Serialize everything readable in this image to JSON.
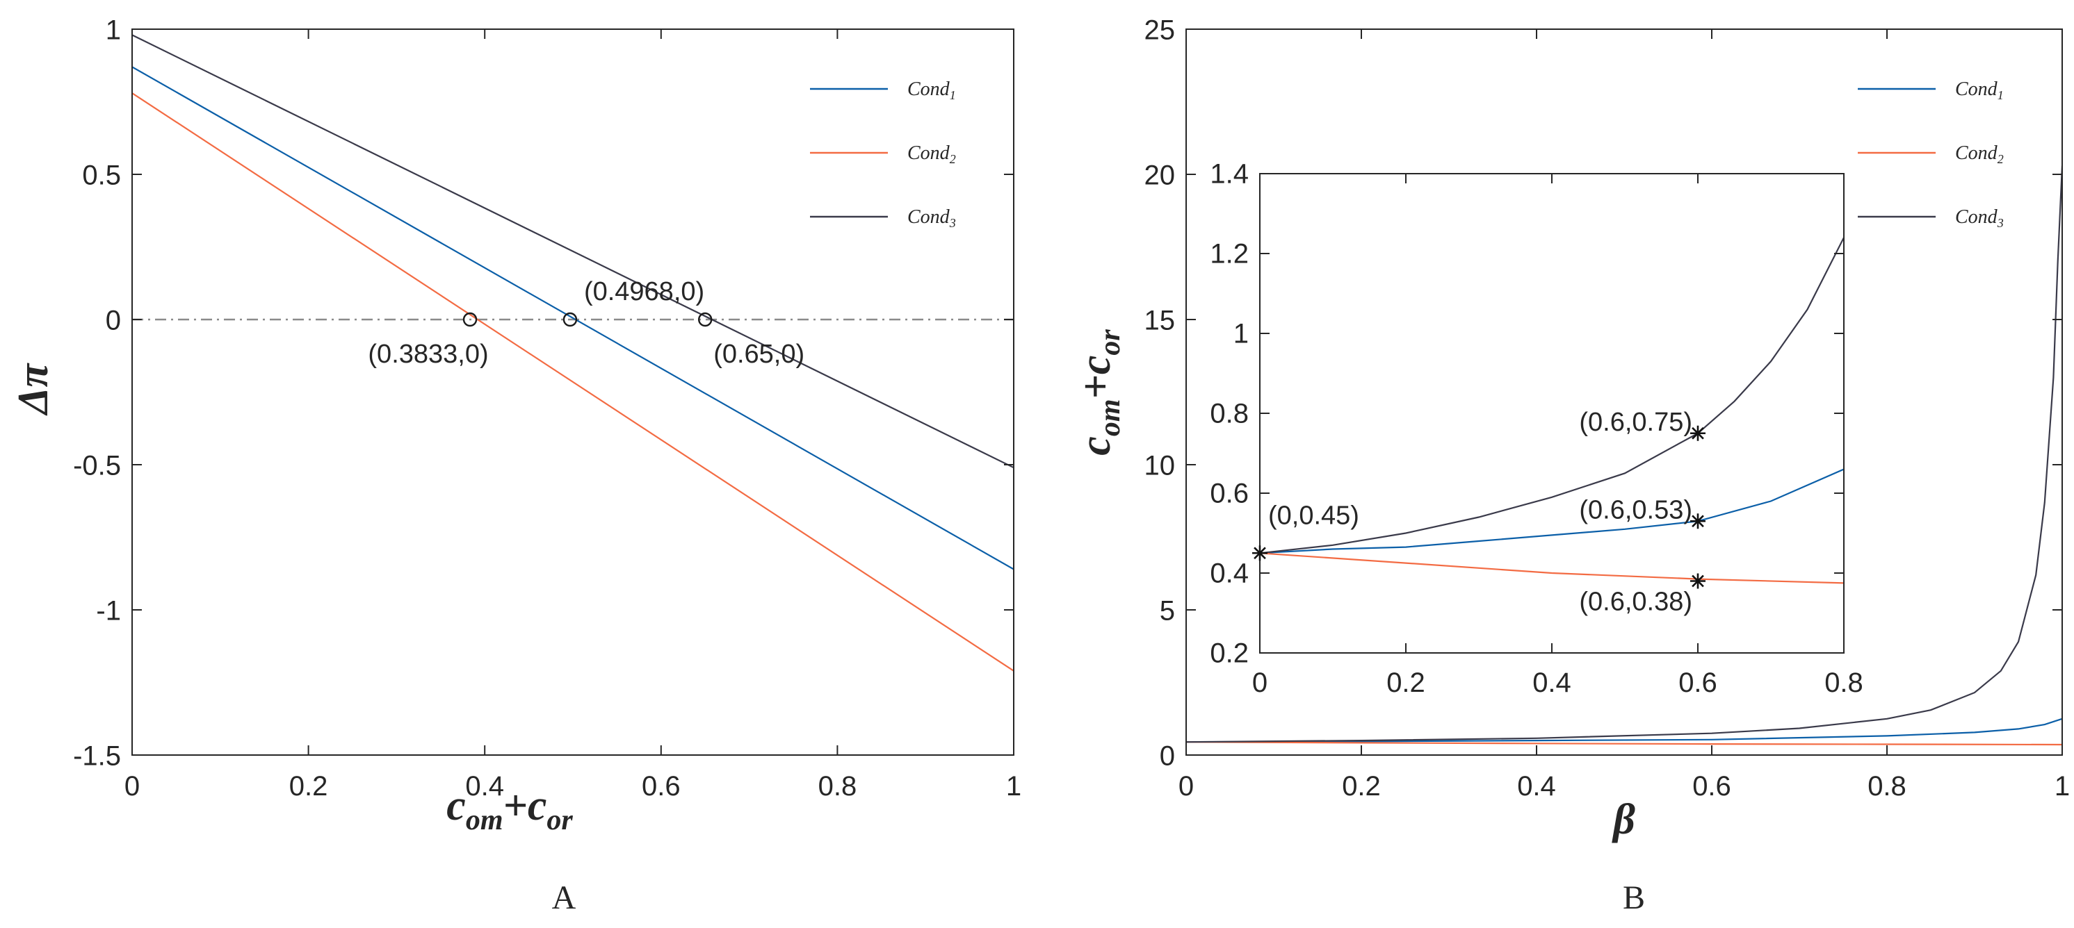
{
  "colors": {
    "cond1": "#0b5fa8",
    "cond2": "#f36b43",
    "cond3": "#3a3a4a",
    "axis": "#262626",
    "zero_line": "#8a8a8a"
  },
  "chart_data": [
    {
      "id": "A",
      "type": "line",
      "panel_label": "A",
      "xlabel": {
        "main": "c",
        "sub1": "om",
        "plus": "+c",
        "sub2": "or"
      },
      "ylabel": "Δπ",
      "xlim": [
        0,
        1
      ],
      "ylim": [
        -1.5,
        1
      ],
      "xticks": [
        0,
        0.2,
        0.4,
        0.6,
        0.8,
        1
      ],
      "xtick_labels": [
        "0",
        "0.2",
        "0.4",
        "0.6",
        "0.8",
        "1"
      ],
      "yticks": [
        -1.5,
        -1,
        -0.5,
        0,
        0.5,
        1
      ],
      "ytick_labels": [
        "-1.5",
        "-1",
        "-0.5",
        "0",
        "0.5",
        "1"
      ],
      "legend_position": "top-right",
      "series": [
        {
          "name": "Cond1",
          "label_base": "Cond",
          "label_sub": "1",
          "color_key": "cond1",
          "x": [
            0,
            1
          ],
          "y": [
            0.87,
            -0.86
          ]
        },
        {
          "name": "Cond2",
          "label_base": "Cond",
          "label_sub": "2",
          "color_key": "cond2",
          "x": [
            0,
            1
          ],
          "y": [
            0.78,
            -1.21
          ]
        },
        {
          "name": "Cond3",
          "label_base": "Cond",
          "label_sub": "3",
          "color_key": "cond3",
          "x": [
            0,
            1
          ],
          "y": [
            0.98,
            -0.51
          ]
        }
      ],
      "reference_line": {
        "y": 0,
        "style": "dash-dot"
      },
      "markers": [
        {
          "x": 0.3833,
          "y": 0,
          "label": "(0.3833,0)",
          "label_pos": "below-left"
        },
        {
          "x": 0.4968,
          "y": 0,
          "label": "(0.4968,0)",
          "label_pos": "above-right"
        },
        {
          "x": 0.65,
          "y": 0,
          "label": "(0.65,0)",
          "label_pos": "below-right"
        }
      ]
    },
    {
      "id": "B",
      "type": "line",
      "panel_label": "B",
      "xlabel": "β",
      "ylabel": {
        "main": "c",
        "sub1": "om",
        "plus": "+c",
        "sub2": "or"
      },
      "xlim": [
        0,
        1
      ],
      "ylim": [
        0,
        25
      ],
      "xticks": [
        0,
        0.2,
        0.4,
        0.6,
        0.8,
        1
      ],
      "xtick_labels": [
        "0",
        "0.2",
        "0.4",
        "0.6",
        "0.8",
        "1"
      ],
      "yticks": [
        0,
        5,
        10,
        15,
        20,
        25
      ],
      "ytick_labels": [
        "0",
        "5",
        "10",
        "15",
        "20",
        "25"
      ],
      "legend_position": "top-right",
      "series": [
        {
          "name": "Cond1",
          "label_base": "Cond",
          "label_sub": "1",
          "color_key": "cond1",
          "x": [
            0,
            0.2,
            0.4,
            0.6,
            0.8,
            0.9,
            0.95,
            0.98,
            1.0
          ],
          "y": [
            0.45,
            0.47,
            0.5,
            0.53,
            0.66,
            0.78,
            0.9,
            1.05,
            1.25
          ]
        },
        {
          "name": "Cond2",
          "label_base": "Cond",
          "label_sub": "2",
          "color_key": "cond2",
          "x": [
            0,
            0.2,
            0.4,
            0.6,
            0.8,
            1.0
          ],
          "y": [
            0.45,
            0.42,
            0.4,
            0.38,
            0.37,
            0.36
          ]
        },
        {
          "name": "Cond3",
          "label_base": "Cond",
          "label_sub": "3",
          "color_key": "cond3",
          "x": [
            0,
            0.2,
            0.4,
            0.6,
            0.7,
            0.8,
            0.85,
            0.9,
            0.93,
            0.95,
            0.97,
            0.98,
            0.99,
            0.995,
            1.0
          ],
          "y": [
            0.45,
            0.5,
            0.58,
            0.75,
            0.92,
            1.25,
            1.55,
            2.15,
            2.9,
            3.9,
            6.2,
            8.7,
            13.0,
            17.0,
            20.3
          ]
        }
      ],
      "inset": {
        "xlim": [
          0,
          0.8
        ],
        "ylim": [
          0.2,
          1.4
        ],
        "xticks": [
          0,
          0.2,
          0.4,
          0.6,
          0.8
        ],
        "xtick_labels": [
          "0",
          "0.2",
          "0.4",
          "0.6",
          "0.8"
        ],
        "yticks": [
          0.2,
          0.4,
          0.6,
          0.8,
          1,
          1.2,
          1.4
        ],
        "ytick_labels": [
          "0.2",
          "0.4",
          "0.6",
          "0.8",
          "1",
          "1.2",
          "1.4"
        ],
        "series": [
          {
            "name": "Cond1",
            "color_key": "cond1",
            "x": [
              0,
              0.1,
              0.2,
              0.3,
              0.4,
              0.5,
              0.6,
              0.7,
              0.8
            ],
            "y": [
              0.45,
              0.46,
              0.465,
              0.48,
              0.495,
              0.51,
              0.53,
              0.58,
              0.66
            ]
          },
          {
            "name": "Cond2",
            "color_key": "cond2",
            "x": [
              0,
              0.2,
              0.4,
              0.6,
              0.8
            ],
            "y": [
              0.45,
              0.425,
              0.4,
              0.385,
              0.375
            ]
          },
          {
            "name": "Cond3",
            "color_key": "cond3",
            "x": [
              0,
              0.1,
              0.2,
              0.3,
              0.4,
              0.5,
              0.6,
              0.65,
              0.7,
              0.75,
              0.8
            ],
            "y": [
              0.45,
              0.47,
              0.5,
              0.54,
              0.59,
              0.65,
              0.75,
              0.83,
              0.93,
              1.06,
              1.24
            ]
          }
        ],
        "markers": [
          {
            "x": 0,
            "y": 0.45,
            "label": "(0,0.45)",
            "label_pos": "above-right"
          },
          {
            "x": 0.6,
            "y": 0.75,
            "label": "(0.6,0.75)",
            "label_pos": "left"
          },
          {
            "x": 0.6,
            "y": 0.53,
            "label": "(0.6,0.53)",
            "label_pos": "left"
          },
          {
            "x": 0.6,
            "y": 0.38,
            "label": "(0.6,0.38)",
            "label_pos": "below-left"
          }
        ]
      }
    }
  ]
}
